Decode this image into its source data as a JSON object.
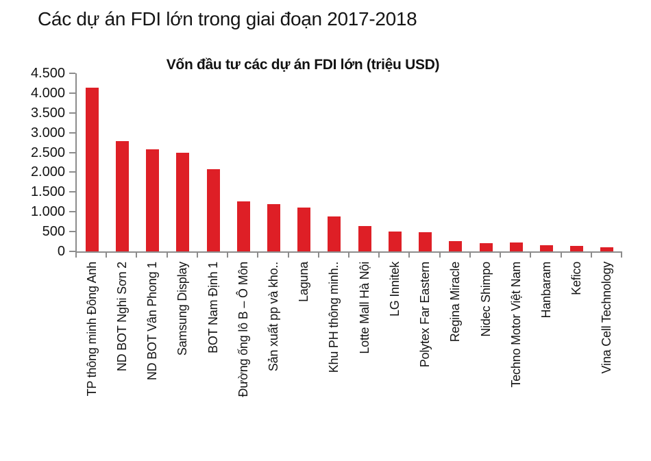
{
  "page": {
    "title": "Các dự án FDI lớn trong giai đoạn 2017-2018"
  },
  "chart_data": {
    "type": "bar",
    "title": "Vốn đầu tư các dự án FDI lớn (triệu USD)",
    "unit": "triệu USD",
    "categories": [
      "TP thông minh Đông Anh",
      "ND BOT Nghi Sơn 2",
      "ND BOT Vân Phong 1",
      "Samsung Display",
      "BOT Nam Định 1",
      "Đường ống lô B – Ô Môn",
      "Sản xuất pp và kho..",
      "Laguna",
      "Khu PH thông minh..",
      "Lotte Mall Hà Nội",
      "LG Innitek",
      "Polytex Far Eastern",
      "Regina Miracle",
      "Nidec Shimpo",
      "Techno Motor Việt Nam",
      "Hanbaram",
      "Kefico",
      "Vina Cell Technology"
    ],
    "values": [
      4140,
      2790,
      2580,
      2500,
      2070,
      1270,
      1200,
      1100,
      880,
      640,
      500,
      485,
      260,
      210,
      225,
      160,
      135,
      105
    ],
    "xlabel": "",
    "ylabel": "",
    "ylim": [
      0,
      4500
    ],
    "ytick_step": 500,
    "ytick_labels": [
      "0",
      "500",
      "1.000",
      "1.500",
      "2.000",
      "2.500",
      "3.000",
      "3.500",
      "4.000",
      "4.500"
    ],
    "grid": false,
    "legend": false,
    "bar_color": "#DE1F26",
    "axis_color": "#8C8C8C",
    "text_color": "#121212"
  }
}
